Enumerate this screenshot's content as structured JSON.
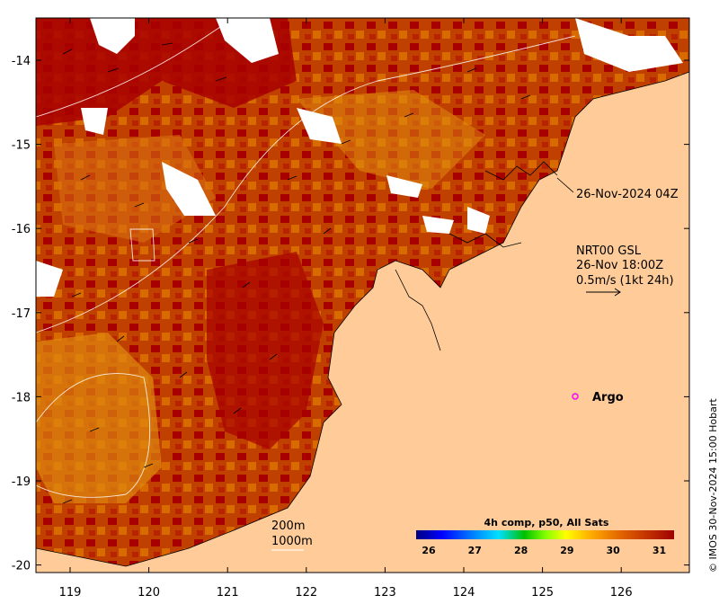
{
  "map": {
    "x_ticks": [
      "119",
      "120",
      "121",
      "122",
      "123",
      "124",
      "125",
      "126"
    ],
    "y_ticks": [
      "-14",
      "-15",
      "-16",
      "-17",
      "-18",
      "-19",
      "-20"
    ],
    "timestamp_label": "26-Nov-2024 04Z",
    "current_legend": {
      "line1": "NRT00 GSL",
      "line2": "26-Nov 18:00Z",
      "line3": "0.5m/s (1kt 24h)"
    },
    "argo_label": "Argo",
    "bathy_labels": [
      "200m",
      "1000m"
    ],
    "colorbar": {
      "title": "4h comp, p50, All Sats",
      "ticks": [
        "26",
        "27",
        "28",
        "29",
        "30",
        "31"
      ],
      "colors": [
        "#00007f",
        "#0000ff",
        "#0080ff",
        "#00ffff",
        "#00c000",
        "#80ff00",
        "#ffff00",
        "#ffaa00",
        "#e06000",
        "#c03000",
        "#a00000"
      ]
    },
    "credit": "© IMOS 30-Nov-2024 15:00 Hobart",
    "colors": {
      "land": "#ffcc99",
      "sst_dark": "#a80000",
      "sst_mid": "#c84a00",
      "sst_light": "#e08a10",
      "argo": "#ff00ff"
    }
  }
}
